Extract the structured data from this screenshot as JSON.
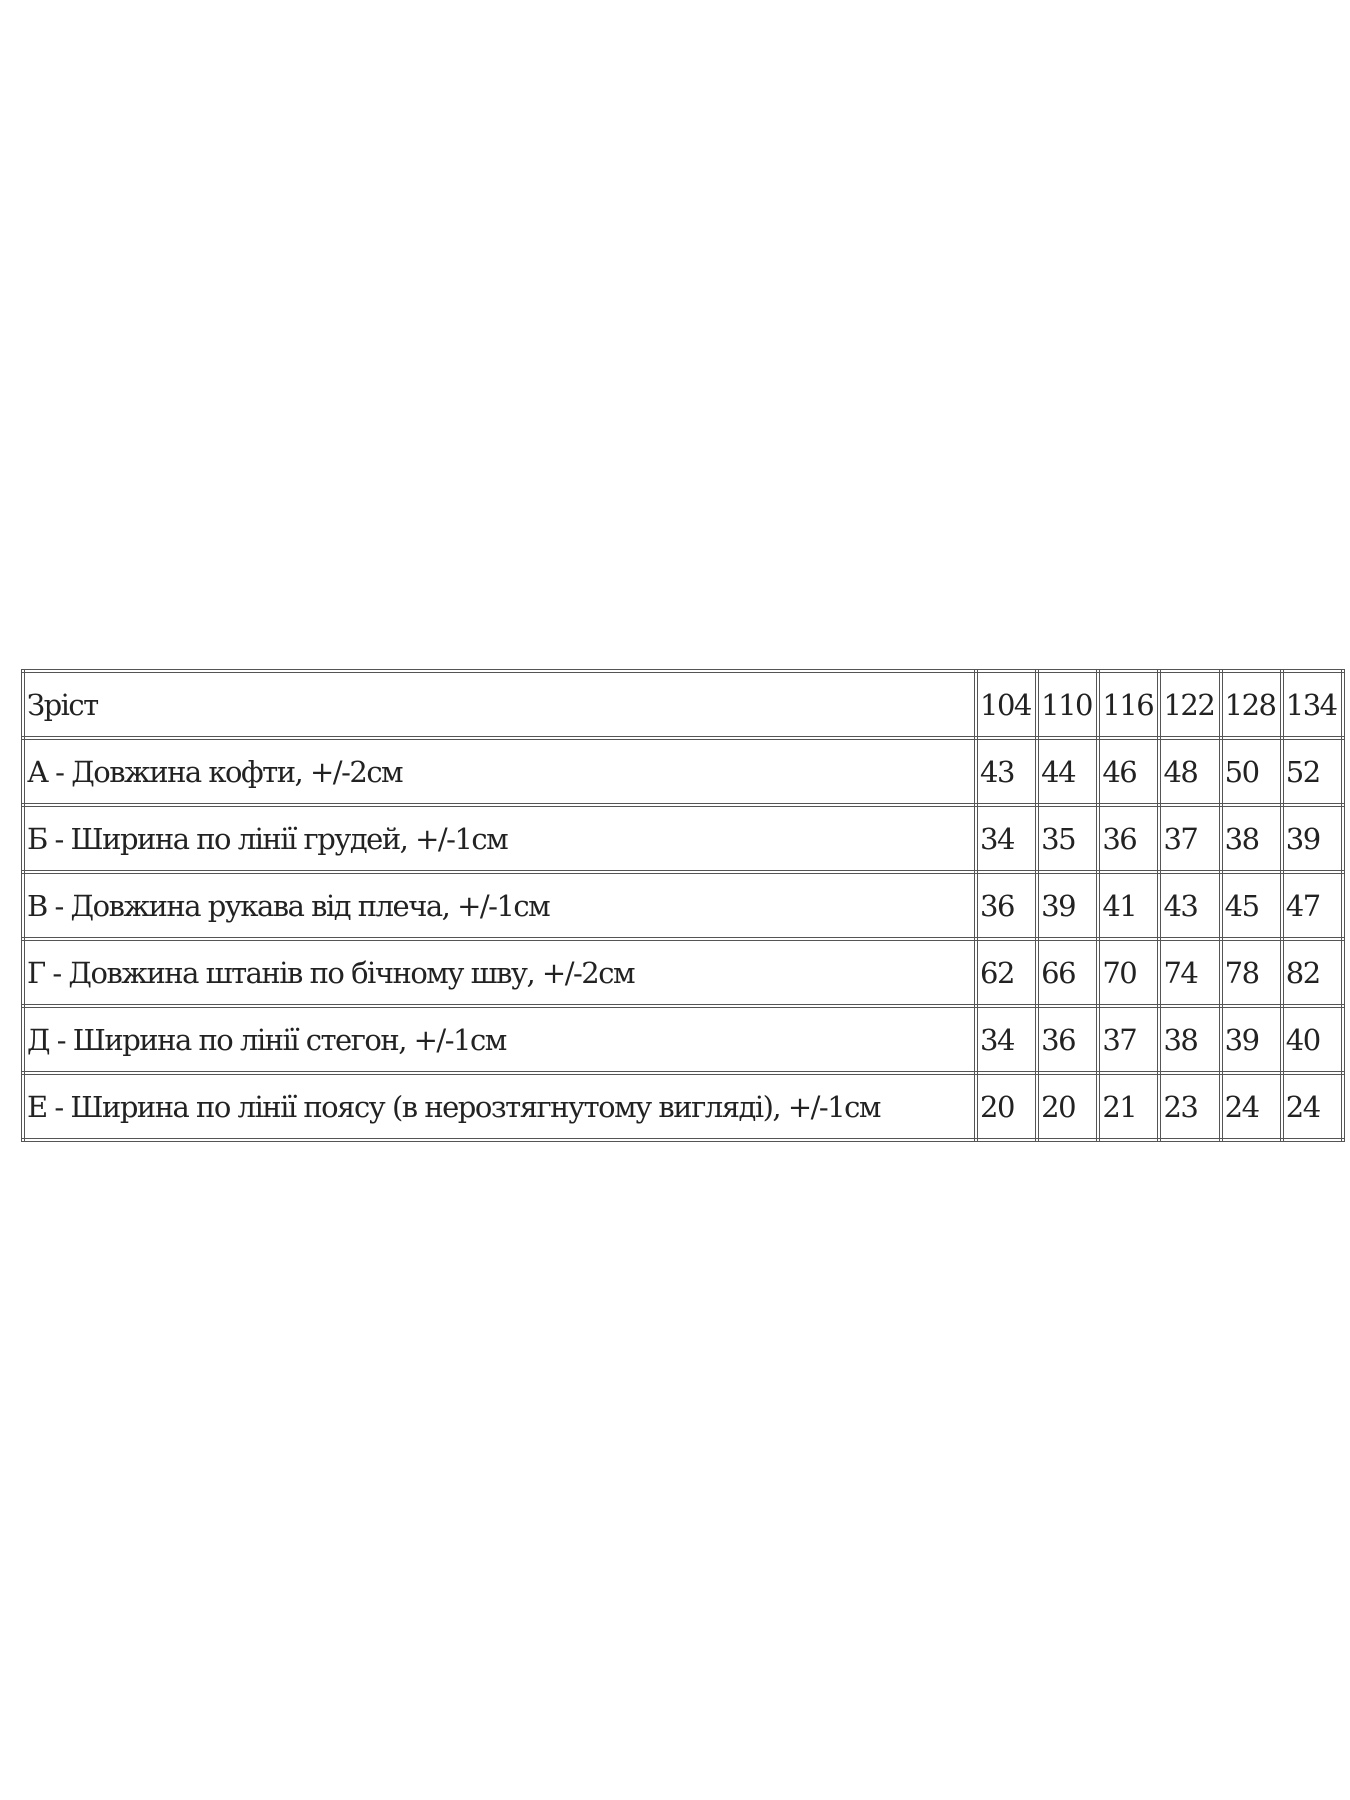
{
  "table": {
    "header": {
      "label": "Зріст",
      "sizes": [
        "104",
        "110",
        "116",
        "122",
        "128",
        "134"
      ]
    },
    "rows": [
      {
        "label": "А - Довжина кофти, +/-2см",
        "values": [
          "43",
          "44",
          "46",
          "48",
          "50",
          "52"
        ]
      },
      {
        "label": "Б - Ширина по лінії грудей, +/-1см",
        "values": [
          "34",
          "35",
          "36",
          "37",
          "38",
          "39"
        ]
      },
      {
        "label": "В - Довжина рукава від плеча, +/-1см",
        "values": [
          "36",
          "39",
          "41",
          "43",
          "45",
          "47"
        ]
      },
      {
        "label": "Г - Довжина штанів по бічному шву, +/-2см",
        "values": [
          "62",
          "66",
          "70",
          "74",
          "78",
          "82"
        ]
      },
      {
        "label": "Д - Ширина по лінії стегон, +/-1см",
        "values": [
          "34",
          "36",
          "37",
          "38",
          "39",
          "40"
        ]
      },
      {
        "label": "Е - Ширина по лінії поясу (в нерозтягнутому вигляді), +/-1см",
        "values": [
          "20",
          "20",
          "21",
          "23",
          "24",
          "24"
        ]
      }
    ]
  }
}
